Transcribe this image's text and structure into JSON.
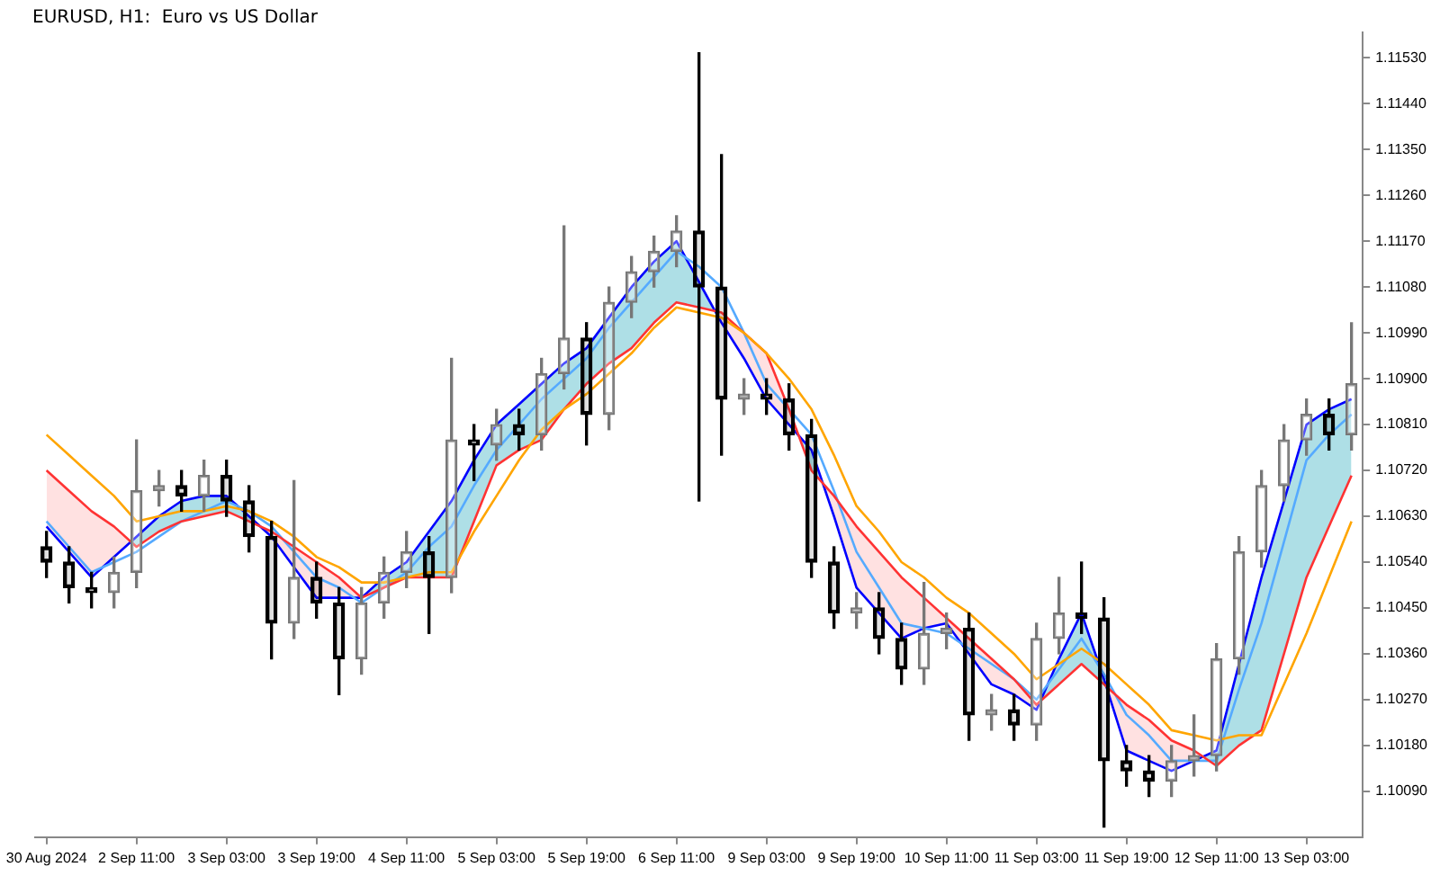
{
  "chart_data": {
    "type": "candlestick",
    "title": "EURUSD, H1:  Euro vs US Dollar",
    "categories": [
      "30 Aug 2024",
      null,
      null,
      null,
      "2 Sep 11:00",
      null,
      null,
      null,
      "3 Sep 03:00",
      null,
      null,
      null,
      "3 Sep 19:00",
      null,
      null,
      null,
      "4 Sep 11:00",
      null,
      null,
      null,
      "5 Sep 03:00",
      null,
      null,
      null,
      "5 Sep 19:00",
      null,
      null,
      null,
      "6 Sep 11:00",
      null,
      null,
      null,
      "9 Sep 03:00",
      null,
      null,
      null,
      "9 Sep 19:00",
      null,
      null,
      null,
      "10 Sep 11:00",
      null,
      null,
      null,
      "11 Sep 03:00",
      null,
      null,
      null,
      "11 Sep 19:00",
      null,
      null,
      null,
      "12 Sep 11:00",
      null,
      null,
      null,
      "13 Sep 03:00",
      null,
      null
    ],
    "ylim": [
      1.1,
      1.1158
    ],
    "yticks": [
      {
        "value": 1.1009,
        "label": "1.10090"
      },
      {
        "value": 1.1018,
        "label": "1.10180"
      },
      {
        "value": 1.1027,
        "label": "1.10270"
      },
      {
        "value": 1.1036,
        "label": "1.10360"
      },
      {
        "value": 1.1045,
        "label": "1.10450"
      },
      {
        "value": 1.1054,
        "label": "1.10540"
      },
      {
        "value": 1.1063,
        "label": "1.10630"
      },
      {
        "value": 1.1072,
        "label": "1.10720"
      },
      {
        "value": 1.1081,
        "label": "1.10810"
      },
      {
        "value": 1.109,
        "label": "1.10900"
      },
      {
        "value": 1.1099,
        "label": "1.10990"
      },
      {
        "value": 1.1108,
        "label": "1.11080"
      },
      {
        "value": 1.1117,
        "label": "1.11170"
      },
      {
        "value": 1.1126,
        "label": "1.11260"
      },
      {
        "value": 1.1135,
        "label": "1.11350"
      },
      {
        "value": 1.1144,
        "label": "1.11440"
      },
      {
        "value": 1.1153,
        "label": "1.11530"
      }
    ],
    "grid": false,
    "legend": false,
    "marker": "none",
    "series": [
      {
        "type": "line",
        "color": "#ffa500",
        "values": [
          1.1079,
          1.1075,
          1.1071,
          1.1067,
          1.1062,
          1.1063,
          1.1064,
          1.1064,
          1.1065,
          1.1064,
          1.1062,
          1.1059,
          1.1055,
          1.1053,
          1.105,
          1.105,
          1.1051,
          1.1052,
          1.1052,
          1.106,
          1.1067,
          1.1074,
          1.108,
          1.1084,
          1.1087,
          1.1091,
          1.1095,
          1.11,
          1.1104,
          1.1103,
          1.1102,
          1.1099,
          1.1095,
          1.109,
          1.1084,
          1.1075,
          1.1065,
          1.106,
          1.1054,
          1.1051,
          1.1047,
          1.1044,
          1.104,
          1.1036,
          1.1031,
          1.1034,
          1.1037,
          1.1034,
          1.103,
          1.1026,
          1.1021,
          1.102,
          1.1019,
          1.102,
          1.102,
          1.103,
          1.104,
          1.1051,
          1.1062
        ]
      },
      {
        "type": "line",
        "color": "#ff3333",
        "values": [
          1.1072,
          1.1068,
          1.1064,
          1.1061,
          1.1057,
          1.106,
          1.1062,
          1.1063,
          1.1064,
          1.1062,
          1.106,
          1.1057,
          1.1054,
          1.1051,
          1.1047,
          1.1049,
          1.1051,
          1.1051,
          1.1051,
          1.1062,
          1.1073,
          1.1076,
          1.1078,
          1.1084,
          1.1089,
          1.1093,
          1.1096,
          1.1101,
          1.1105,
          1.1104,
          1.1103,
          1.1099,
          1.1095,
          1.1084,
          1.1072,
          1.1067,
          1.1061,
          1.1056,
          1.1051,
          1.1047,
          1.1043,
          1.1039,
          1.1035,
          1.1031,
          1.1026,
          1.103,
          1.1034,
          1.103,
          1.1026,
          1.1023,
          1.1019,
          1.1017,
          1.1014,
          1.1018,
          1.1021,
          1.1036,
          1.1051,
          1.1061,
          1.1071
        ]
      },
      {
        "type": "line",
        "color": "#55aaff",
        "values": [
          1.1062,
          1.1057,
          1.1052,
          1.1054,
          1.1056,
          1.1059,
          1.1062,
          1.1064,
          1.1066,
          1.1064,
          1.1061,
          1.1056,
          1.1051,
          1.1049,
          1.1046,
          1.1049,
          1.1052,
          1.1057,
          1.1061,
          1.1069,
          1.1076,
          1.1081,
          1.1086,
          1.109,
          1.1094,
          1.11,
          1.1105,
          1.111,
          1.1115,
          1.1112,
          1.1108,
          1.1099,
          1.1089,
          1.1084,
          1.1079,
          1.1068,
          1.1056,
          1.1049,
          1.1042,
          1.1041,
          1.104,
          1.1037,
          1.1034,
          1.1031,
          1.1027,
          1.1033,
          1.1039,
          1.1032,
          1.1024,
          1.102,
          1.1015,
          1.1015,
          1.1015,
          1.1029,
          1.1042,
          1.1058,
          1.1074,
          1.1079,
          1.1083
        ]
      },
      {
        "type": "line",
        "color": "#0000ff",
        "values": [
          1.1061,
          1.1056,
          1.1051,
          1.1055,
          1.1059,
          1.1063,
          1.1066,
          1.1067,
          1.1067,
          1.1063,
          1.1059,
          1.1053,
          1.1047,
          1.1047,
          1.1047,
          1.1051,
          1.1054,
          1.106,
          1.1066,
          1.1074,
          1.1081,
          1.1085,
          1.1089,
          1.1093,
          1.1096,
          1.1102,
          1.1108,
          1.1113,
          1.1117,
          1.1109,
          1.1101,
          1.1094,
          1.1086,
          1.1081,
          1.1076,
          1.1063,
          1.1049,
          1.1044,
          1.1039,
          1.1041,
          1.1042,
          1.1036,
          1.103,
          1.1028,
          1.1025,
          1.1035,
          1.1044,
          1.1031,
          1.1017,
          1.1015,
          1.1013,
          1.1015,
          1.1017,
          1.1034,
          1.1051,
          1.1066,
          1.1081,
          1.1084,
          1.1086
        ]
      },
      {
        "ohlc": [
          [
            1.1057,
            1.106,
            1.1051,
            1.1054
          ],
          [
            1.1054,
            1.1057,
            1.1046,
            1.1049
          ],
          [
            1.1049,
            1.1052,
            1.1045,
            1.1048
          ],
          [
            1.1048,
            1.1055,
            1.1045,
            1.1052
          ],
          [
            1.1052,
            1.1078,
            1.1049,
            1.1068
          ],
          [
            1.1068,
            1.1072,
            1.1065,
            1.1069
          ],
          [
            1.1069,
            1.1072,
            1.1064,
            1.1067
          ],
          [
            1.1067,
            1.1074,
            1.1064,
            1.1071
          ],
          [
            1.1071,
            1.1074,
            1.1063,
            1.1066
          ],
          [
            1.1066,
            1.1069,
            1.1056,
            1.1059
          ],
          [
            1.1059,
            1.1062,
            1.1035,
            1.1042
          ],
          [
            1.1042,
            1.107,
            1.1039,
            1.1051
          ],
          [
            1.1051,
            1.1054,
            1.1043,
            1.1046
          ],
          [
            1.1046,
            1.1049,
            1.1028,
            1.1035
          ],
          [
            1.1035,
            1.1049,
            1.1032,
            1.1046
          ],
          [
            1.1046,
            1.1055,
            1.1043,
            1.1052
          ],
          [
            1.1052,
            1.106,
            1.1049,
            1.1056
          ],
          [
            1.1056,
            1.1059,
            1.104,
            1.1051
          ],
          [
            1.1051,
            1.1094,
            1.1048,
            1.1078
          ],
          [
            1.1078,
            1.1081,
            1.107,
            1.1077
          ],
          [
            1.1077,
            1.1084,
            1.1074,
            1.1081
          ],
          [
            1.1081,
            1.1084,
            1.1076,
            1.1079
          ],
          [
            1.1079,
            1.1094,
            1.1076,
            1.1091
          ],
          [
            1.1091,
            1.112,
            1.1088,
            1.1098
          ],
          [
            1.1098,
            1.1101,
            1.1077,
            1.1083
          ],
          [
            1.1083,
            1.1108,
            1.108,
            1.1105
          ],
          [
            1.1105,
            1.1114,
            1.1102,
            1.1111
          ],
          [
            1.1111,
            1.1118,
            1.1108,
            1.1115
          ],
          [
            1.1115,
            1.1122,
            1.1112,
            1.1119
          ],
          [
            1.1119,
            1.1154,
            1.1066,
            1.1108
          ],
          [
            1.1108,
            1.1134,
            1.1075,
            1.1086
          ],
          [
            1.1086,
            1.109,
            1.1083,
            1.1087
          ],
          [
            1.1087,
            1.109,
            1.1083,
            1.1086
          ],
          [
            1.1086,
            1.1089,
            1.1076,
            1.1079
          ],
          [
            1.1079,
            1.1082,
            1.1051,
            1.1054
          ],
          [
            1.1054,
            1.1057,
            1.1041,
            1.1044
          ],
          [
            1.1044,
            1.1048,
            1.1041,
            1.1045
          ],
          [
            1.1045,
            1.1048,
            1.1036,
            1.1039
          ],
          [
            1.1039,
            1.1042,
            1.103,
            1.1033
          ],
          [
            1.1033,
            1.105,
            1.103,
            1.104
          ],
          [
            1.104,
            1.1044,
            1.1037,
            1.1041
          ],
          [
            1.1041,
            1.1044,
            1.1019,
            1.1024
          ],
          [
            1.1024,
            1.1028,
            1.1021,
            1.1025
          ],
          [
            1.1025,
            1.1028,
            1.1019,
            1.1022
          ],
          [
            1.1022,
            1.1042,
            1.1019,
            1.1039
          ],
          [
            1.1039,
            1.1051,
            1.1036,
            1.1044
          ],
          [
            1.1044,
            1.1054,
            1.104,
            1.1043
          ],
          [
            1.1043,
            1.1047,
            1.1002,
            1.1015
          ],
          [
            1.1015,
            1.1018,
            1.101,
            1.1013
          ],
          [
            1.1013,
            1.1016,
            1.1008,
            1.1011
          ],
          [
            1.1011,
            1.1018,
            1.1008,
            1.1015
          ],
          [
            1.1015,
            1.1024,
            1.1012,
            1.1016
          ],
          [
            1.1016,
            1.1038,
            1.1013,
            1.1035
          ],
          [
            1.1035,
            1.1059,
            1.1032,
            1.1056
          ],
          [
            1.1056,
            1.1072,
            1.1053,
            1.1069
          ],
          [
            1.1069,
            1.1081,
            1.1066,
            1.1078
          ],
          [
            1.1078,
            1.1086,
            1.1075,
            1.1083
          ],
          [
            1.1083,
            1.1086,
            1.1076,
            1.1079
          ],
          [
            1.1079,
            1.1101,
            1.1076,
            1.1089
          ]
        ]
      }
    ]
  }
}
